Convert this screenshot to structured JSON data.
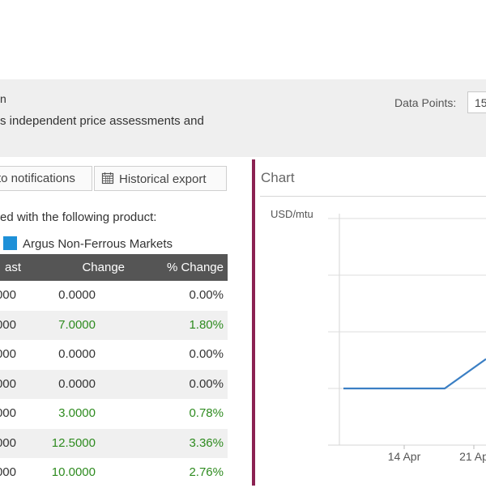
{
  "header": {
    "title_fragment": "n",
    "description_fragment": "s independent price assessments and",
    "data_points_label": "Data Points:",
    "data_points_value": "15"
  },
  "toolbar": {
    "notifications_label": "to notifications",
    "export_label": "Historical export"
  },
  "product": {
    "intro_text": "ed with the following product:",
    "name": "Argus Non-Ferrous Markets",
    "swatch_color": "#1e90d8"
  },
  "table": {
    "headers": {
      "last": "ast",
      "change": "Change",
      "pct_change": "% Change"
    },
    "rows": [
      {
        "last": "000",
        "change": "0.0000",
        "pct": "0.00%",
        "trend": "neutral"
      },
      {
        "last": "000",
        "change": "7.0000",
        "pct": "1.80%",
        "trend": "pos"
      },
      {
        "last": "000",
        "change": "0.0000",
        "pct": "0.00%",
        "trend": "neutral"
      },
      {
        "last": "000",
        "change": "0.0000",
        "pct": "0.00%",
        "trend": "neutral"
      },
      {
        "last": "000",
        "change": "3.0000",
        "pct": "0.78%",
        "trend": "pos"
      },
      {
        "last": "000",
        "change": "12.5000",
        "pct": "3.36%",
        "trend": "pos"
      },
      {
        "last": "000",
        "change": "10.0000",
        "pct": "2.76%",
        "trend": "pos"
      }
    ],
    "positive_color": "#2e8b1f",
    "header_bg": "#555555"
  },
  "chart_panel": {
    "title": "Chart"
  },
  "chart_data": {
    "type": "line",
    "ylabel": "USD/mtu",
    "x_ticks": [
      "14 Apr",
      "21 Ap"
    ],
    "grid": true,
    "series_color": "#3b7fc4",
    "series": [
      {
        "values": [
          {
            "day_index": 0,
            "level": 0.25
          },
          {
            "day_index": 1,
            "level": 0.25
          },
          {
            "day_index": 2,
            "level": 0.25
          },
          {
            "day_index": 3,
            "level": 0.25
          },
          {
            "day_index": 4,
            "level": 0.25
          },
          {
            "day_index": 5,
            "level": 0.25
          },
          {
            "day_index": 6,
            "level": 0.38
          }
        ]
      }
    ]
  },
  "colors": {
    "accent_divider": "#8b2252",
    "header_band": "#efefef"
  }
}
